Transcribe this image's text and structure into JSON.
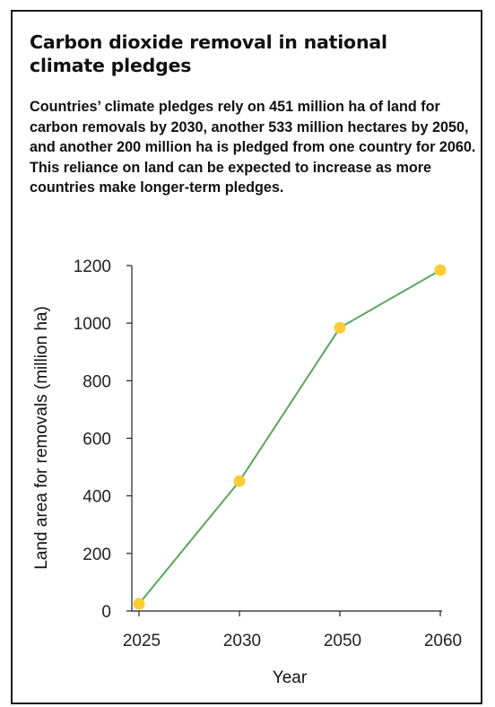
{
  "header": {
    "title": "Carbon dioxide removal in national climate pledges",
    "subtitle": "Countries’ climate pledges rely on 451 million ha of land for carbon removals by 2030, another 533 million hectares by 2050, and another 200 million ha is pledged from one country for 2060. This reliance on land can be expected to increase as more countries make longer-term pledges."
  },
  "chart_data": {
    "type": "line",
    "categories": [
      "2025",
      "2030",
      "2050",
      "2060"
    ],
    "series": [
      {
        "values": [
          25,
          451,
          984,
          1184
        ]
      }
    ],
    "xlabel": "Year",
    "ylabel": "Land area for removals (million ha)",
    "ylim": [
      0,
      1200
    ],
    "yticks": [
      0,
      200,
      400,
      600,
      800,
      1000,
      1200
    ],
    "grid": false,
    "legend": "none",
    "colors": {
      "line": "#5aa55e",
      "marker": "#ffcc33",
      "axis": "#222222"
    }
  }
}
